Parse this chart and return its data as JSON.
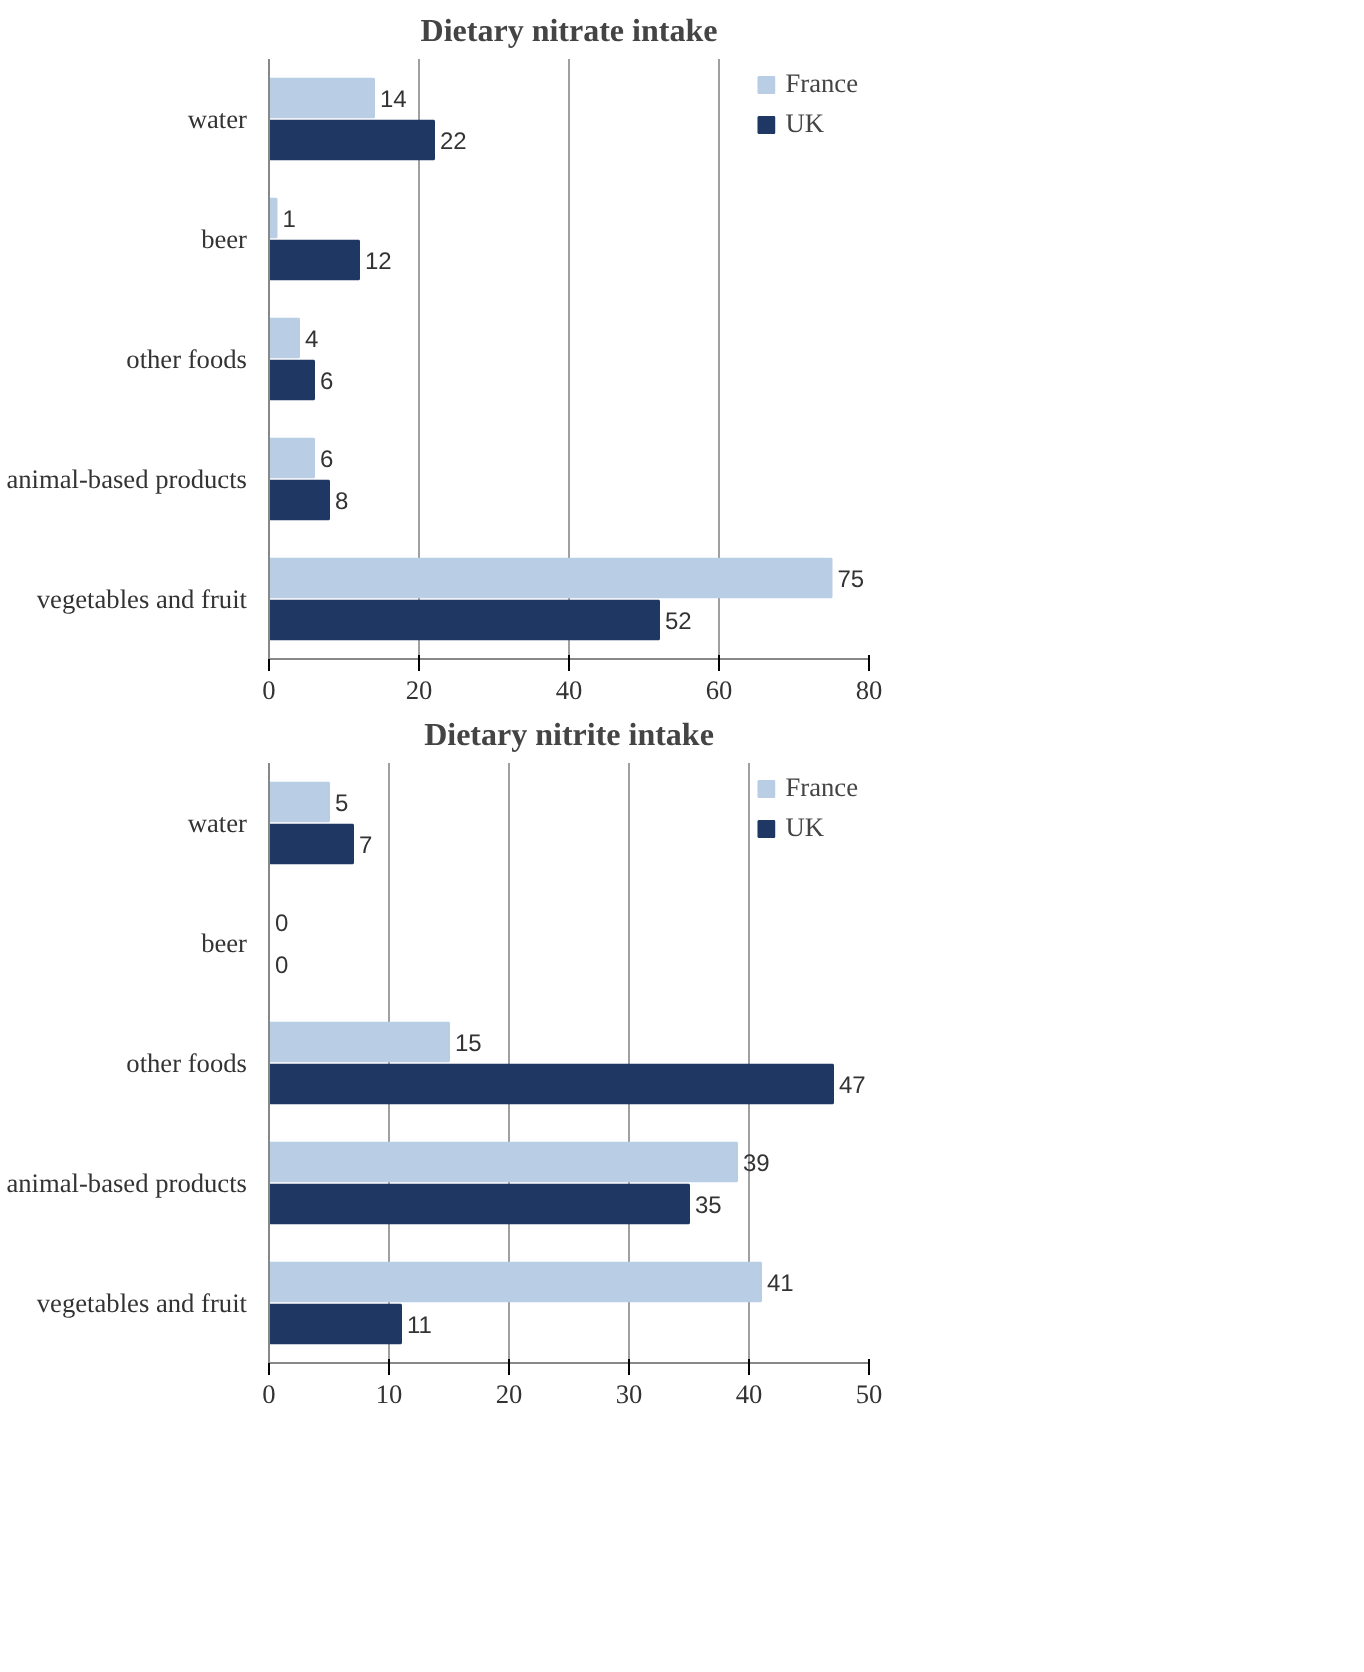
{
  "chart_data": [
    {
      "type": "bar",
      "title": "Dietary nitrate intake",
      "orientation": "horizontal",
      "categories": [
        "water",
        "beer",
        "other foods",
        "animal-based products",
        "vegetables and fruit"
      ],
      "series": [
        {
          "name": "France",
          "color": "#b9cde5",
          "values": [
            14,
            1,
            4,
            6,
            75
          ]
        },
        {
          "name": "UK",
          "color": "#1f3763",
          "values": [
            22,
            12,
            6,
            8,
            52
          ]
        }
      ],
      "xlim": [
        0,
        80
      ],
      "xticks": [
        0,
        20,
        40,
        60,
        80
      ],
      "grid": "x",
      "legend": "top right",
      "data_labels": true
    },
    {
      "type": "bar",
      "title": "Dietary nitrite intake",
      "orientation": "horizontal",
      "categories": [
        "water",
        "beer",
        "other foods",
        "animal-based products",
        "vegetables and fruit"
      ],
      "series": [
        {
          "name": "France",
          "color": "#b9cde5",
          "values": [
            5,
            0,
            15,
            39,
            41
          ]
        },
        {
          "name": "UK",
          "color": "#1f3763",
          "values": [
            7,
            0,
            47,
            35,
            11
          ]
        }
      ],
      "xlim": [
        0,
        50
      ],
      "xticks": [
        0,
        10,
        20,
        30,
        40,
        50
      ],
      "grid": "x",
      "legend": "top right",
      "data_labels": true
    }
  ]
}
